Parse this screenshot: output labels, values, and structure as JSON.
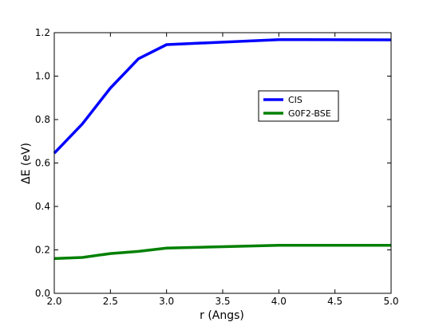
{
  "chart_data": {
    "type": "line",
    "title": "",
    "xlabel": "r (Angs)",
    "ylabel": "ΔE (eV)",
    "xlim": [
      2.0,
      5.0
    ],
    "ylim": [
      0.0,
      1.2
    ],
    "xticks": [
      "2.0",
      "2.5",
      "3.0",
      "3.5",
      "4.0",
      "4.5",
      "5.0"
    ],
    "yticks": [
      "0.0",
      "0.2",
      "0.4",
      "0.6",
      "0.8",
      "1.0",
      "1.2"
    ],
    "grid": false,
    "legend_position": "upper-right-inside",
    "series": [
      {
        "name": "CIS",
        "color": "#0000ff",
        "x": [
          2.0,
          2.25,
          2.5,
          2.75,
          3.0,
          4.0,
          5.0
        ],
        "y": [
          0.645,
          0.78,
          0.945,
          1.08,
          1.145,
          1.168,
          1.167
        ]
      },
      {
        "name": "G0F2-BSE",
        "color": "#008000",
        "x": [
          2.0,
          2.25,
          2.5,
          2.75,
          3.0,
          4.0,
          5.0
        ],
        "y": [
          0.16,
          0.165,
          0.183,
          0.193,
          0.208,
          0.221,
          0.221
        ]
      }
    ]
  }
}
